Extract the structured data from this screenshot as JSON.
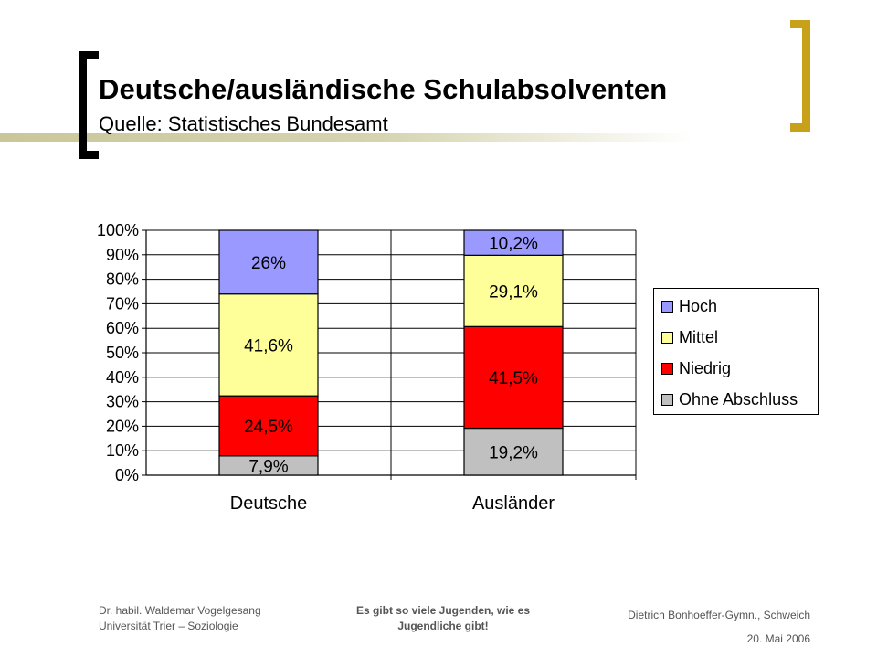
{
  "slide": {
    "title": "Deutsche/ausländische Schulabsolventen",
    "subtitle": "Quelle: Statistisches Bundesamt"
  },
  "chart_data": {
    "type": "bar",
    "stacked": true,
    "percent": true,
    "categories": [
      "Deutsche",
      "Ausländer"
    ],
    "series": [
      {
        "name": "Ohne Abschluss",
        "color": "#c0c0c0",
        "values": [
          7.9,
          19.2
        ],
        "labels": [
          "7,9%",
          "19,2%"
        ]
      },
      {
        "name": "Niedrig",
        "color": "#ff0000",
        "values": [
          24.5,
          41.5
        ],
        "labels": [
          "24,5%",
          "41,5%"
        ]
      },
      {
        "name": "Mittel",
        "color": "#ffff99",
        "values": [
          41.6,
          29.1
        ],
        "labels": [
          "41,6%",
          "29,1%"
        ]
      },
      {
        "name": "Hoch",
        "color": "#9999ff",
        "values": [
          26,
          10.2
        ],
        "labels": [
          "26%",
          "10,2%"
        ]
      }
    ],
    "ylim": [
      0,
      100
    ],
    "yticks": [
      "0%",
      "10%",
      "20%",
      "30%",
      "40%",
      "50%",
      "60%",
      "70%",
      "80%",
      "90%",
      "100%"
    ],
    "grid": true,
    "legend": "right",
    "legend_order": [
      "Hoch",
      "Mittel",
      "Niedrig",
      "Ohne Abschluss"
    ]
  },
  "footer": {
    "left_line1": "Dr. habil. Waldemar Vogelgesang",
    "left_line2": "Universität Trier  – Soziologie",
    "middle_line1": "Es gibt so viele Jugenden, wie es",
    "middle_line2": "Jugendliche gibt!",
    "right_line1": "Dietrich Bonhoeffer-Gymn., Schweich",
    "right_line2": "20. Mai 2006"
  }
}
